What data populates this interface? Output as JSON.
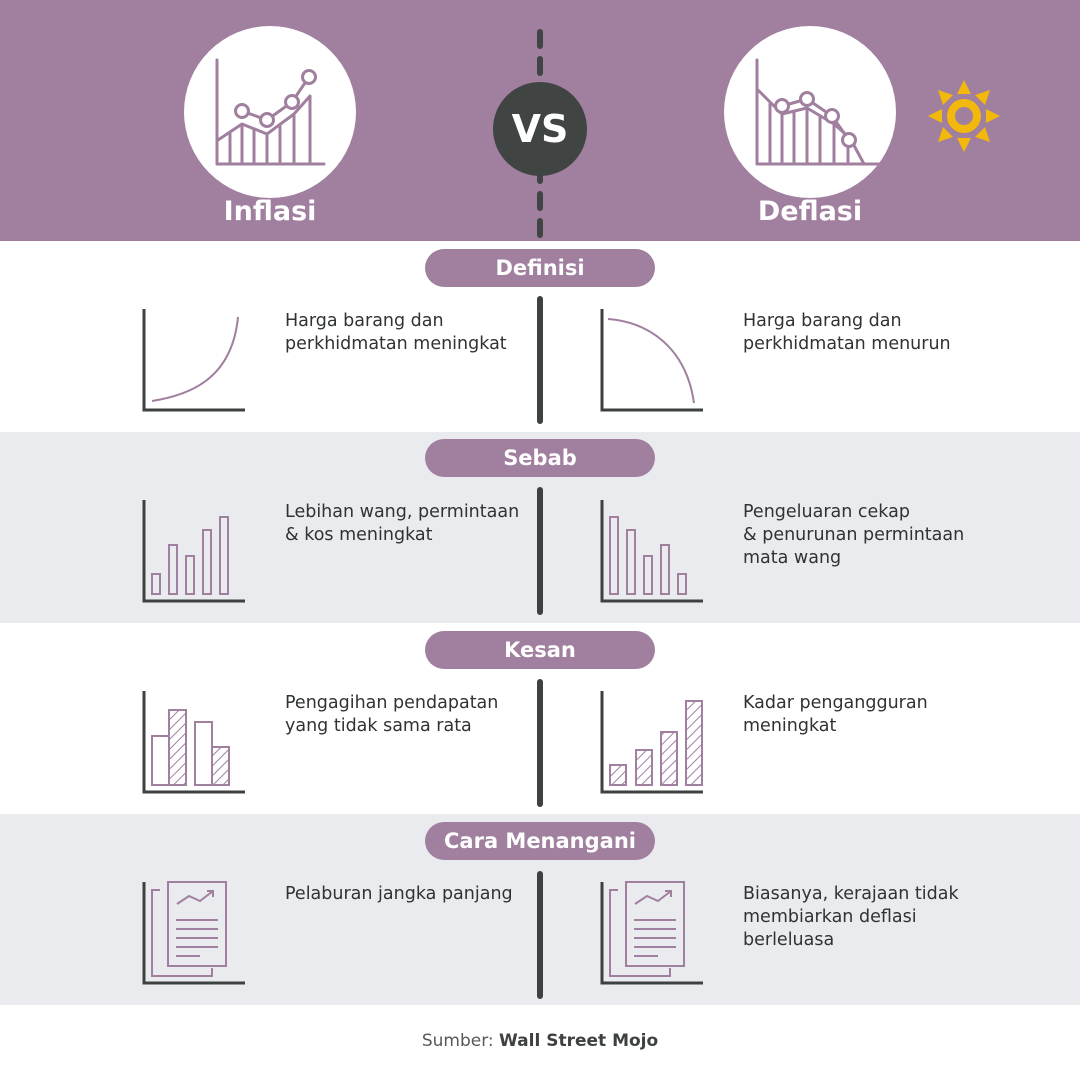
{
  "header": {
    "left_title": "Inflasi",
    "right_title": "Deflasi",
    "vs_label": "VS"
  },
  "sections": [
    {
      "label": "Definisi",
      "inflation_text": [
        "Harga barang dan",
        "perkhidmatan meningkat"
      ],
      "deflation_text": [
        "Harga barang dan",
        "perkhidmatan menurun"
      ]
    },
    {
      "label": "Sebab",
      "inflation_text": [
        "Lebihan wang, permintaan",
        "& kos meningkat"
      ],
      "deflation_text": [
        "Pengeluaran cekap",
        "& penurunan permintaan",
        "mata wang"
      ]
    },
    {
      "label": "Kesan",
      "inflation_text": [
        "Pengagihan pendapatan",
        "yang tidak sama rata"
      ],
      "deflation_text": [
        "Kadar pengangguran",
        "meningkat"
      ]
    },
    {
      "label": "Cara Menangani",
      "inflation_text": [
        "Pelaburan jangka panjang"
      ],
      "deflation_text": [
        "Biasanya, kerajaan tidak",
        "membiarkan deflasi",
        "berleluasa"
      ]
    }
  ],
  "source": {
    "prefix": "Sumber:",
    "name": "Wall Street Mojo"
  },
  "colors": {
    "purple": "#a07f9f",
    "dark": "#404443",
    "gray_band": "#e9ebee",
    "sun": "#f2b90c"
  }
}
